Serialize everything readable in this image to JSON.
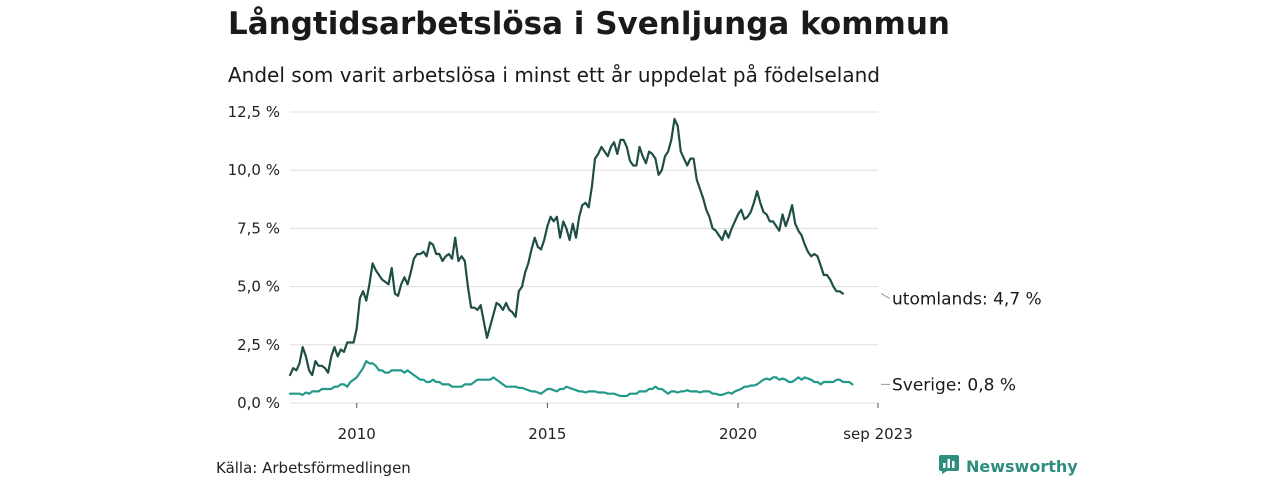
{
  "title": "Långtidsarbetslösa i Svenljunga kommun",
  "subtitle": "Andel som varit arbetslösa i minst ett år uppdelat på födelseland",
  "source": "Källa: Arbetsförmedlingen",
  "brand": "Newsworthy",
  "colors": {
    "foreign": "#1f4e46",
    "sweden": "#23998a",
    "grid": "#dddddd",
    "brand": "#2f8f7f"
  },
  "chart_data": {
    "type": "line",
    "title": "Långtidsarbetslösa i Svenljunga kommun",
    "subtitle": "Andel som varit arbetslösa i minst ett år uppdelat på födelseland",
    "ylim": [
      0,
      12.5
    ],
    "yticks": [
      {
        "value": 0,
        "label": "0,0 %"
      },
      {
        "value": 2.5,
        "label": "2,5 %"
      },
      {
        "value": 5,
        "label": "5,0 %"
      },
      {
        "value": 7.5,
        "label": "7,5 %"
      },
      {
        "value": 10,
        "label": "10,0 %"
      },
      {
        "value": 12.5,
        "label": "12,5 %"
      }
    ],
    "x_start": 2008.25,
    "x_step": 0.08333,
    "xlim": [
      2008.25,
      2023.67
    ],
    "xticks": [
      {
        "value": 2010,
        "label": "2010"
      },
      {
        "value": 2015,
        "label": "2015"
      },
      {
        "value": 2020,
        "label": "2020"
      },
      {
        "value": 2023.67,
        "label": "sep 2023"
      }
    ],
    "series": [
      {
        "name": "utomlands",
        "end_label": "utomlands: 4,7 %",
        "values": [
          1.2,
          1.5,
          1.4,
          1.7,
          2.4,
          2.0,
          1.4,
          1.2,
          1.8,
          1.6,
          1.6,
          1.5,
          1.3,
          2.0,
          2.4,
          2.0,
          2.3,
          2.2,
          2.6,
          2.6,
          2.6,
          3.2,
          4.5,
          4.8,
          4.4,
          5.1,
          6.0,
          5.7,
          5.5,
          5.3,
          5.2,
          5.1,
          5.8,
          4.7,
          4.6,
          5.1,
          5.4,
          5.1,
          5.6,
          6.2,
          6.4,
          6.4,
          6.5,
          6.3,
          6.9,
          6.8,
          6.4,
          6.4,
          6.1,
          6.3,
          6.4,
          6.2,
          7.1,
          6.1,
          6.3,
          6.1,
          5.0,
          4.1,
          4.1,
          4.0,
          4.2,
          3.5,
          2.8,
          3.3,
          3.8,
          4.3,
          4.2,
          4.0,
          4.3,
          4.0,
          3.9,
          3.7,
          4.8,
          5.0,
          5.6,
          6.0,
          6.6,
          7.1,
          6.7,
          6.6,
          7.0,
          7.6,
          8.0,
          7.8,
          8.0,
          7.1,
          7.8,
          7.5,
          7.0,
          7.7,
          7.1,
          8.0,
          8.5,
          8.6,
          8.4,
          9.3,
          10.5,
          10.7,
          11.0,
          10.8,
          10.6,
          11.0,
          11.2,
          10.7,
          11.3,
          11.3,
          11.0,
          10.4,
          10.2,
          10.2,
          11.0,
          10.6,
          10.3,
          10.8,
          10.7,
          10.5,
          9.8,
          10.0,
          10.6,
          10.8,
          11.3,
          12.2,
          11.9,
          10.8,
          10.5,
          10.2,
          10.5,
          10.5,
          9.6,
          9.2,
          8.8,
          8.3,
          8.0,
          7.5,
          7.4,
          7.2,
          7.0,
          7.4,
          7.1,
          7.5,
          7.8,
          8.1,
          8.3,
          7.9,
          8.0,
          8.2,
          8.6,
          9.1,
          8.6,
          8.2,
          8.1,
          7.8,
          7.8,
          7.6,
          7.4,
          8.1,
          7.6,
          8.0,
          8.5,
          7.7,
          7.4,
          7.2,
          6.8,
          6.5,
          6.3,
          6.4,
          6.3,
          5.9,
          5.5,
          5.5,
          5.3,
          5.0,
          4.8,
          4.8,
          4.7
        ]
      },
      {
        "name": "Sverige",
        "end_label": "Sverige: 0,8 %",
        "values": [
          0.4,
          0.4,
          0.4,
          0.4,
          0.35,
          0.45,
          0.4,
          0.5,
          0.5,
          0.5,
          0.6,
          0.6,
          0.6,
          0.6,
          0.7,
          0.7,
          0.8,
          0.8,
          0.7,
          0.9,
          1.0,
          1.1,
          1.3,
          1.5,
          1.8,
          1.7,
          1.7,
          1.6,
          1.4,
          1.4,
          1.3,
          1.3,
          1.4,
          1.4,
          1.4,
          1.4,
          1.3,
          1.4,
          1.3,
          1.2,
          1.1,
          1.0,
          1.0,
          0.9,
          0.9,
          1.0,
          0.9,
          0.9,
          0.8,
          0.8,
          0.8,
          0.7,
          0.7,
          0.7,
          0.7,
          0.8,
          0.8,
          0.8,
          0.9,
          1.0,
          1.0,
          1.0,
          1.0,
          1.0,
          1.1,
          1.0,
          0.9,
          0.8,
          0.7,
          0.7,
          0.7,
          0.7,
          0.65,
          0.65,
          0.6,
          0.55,
          0.5,
          0.5,
          0.45,
          0.4,
          0.5,
          0.6,
          0.6,
          0.55,
          0.5,
          0.6,
          0.6,
          0.7,
          0.65,
          0.6,
          0.55,
          0.5,
          0.5,
          0.45,
          0.5,
          0.5,
          0.5,
          0.45,
          0.45,
          0.45,
          0.4,
          0.4,
          0.4,
          0.35,
          0.3,
          0.3,
          0.3,
          0.4,
          0.4,
          0.4,
          0.5,
          0.5,
          0.5,
          0.6,
          0.6,
          0.7,
          0.6,
          0.6,
          0.5,
          0.4,
          0.5,
          0.5,
          0.45,
          0.5,
          0.5,
          0.55,
          0.5,
          0.5,
          0.5,
          0.45,
          0.5,
          0.5,
          0.5,
          0.4,
          0.4,
          0.35,
          0.35,
          0.4,
          0.45,
          0.4,
          0.5,
          0.55,
          0.6,
          0.7,
          0.7,
          0.75,
          0.75,
          0.8,
          0.9,
          1.0,
          1.05,
          1.0,
          1.1,
          1.1,
          1.0,
          1.05,
          1.0,
          0.9,
          0.9,
          1.0,
          1.1,
          1.0,
          1.1,
          1.05,
          1.0,
          0.9,
          0.9,
          0.8,
          0.9,
          0.9,
          0.9,
          0.9,
          1.0,
          1.0,
          0.9,
          0.9,
          0.9,
          0.8
        ]
      }
    ]
  }
}
